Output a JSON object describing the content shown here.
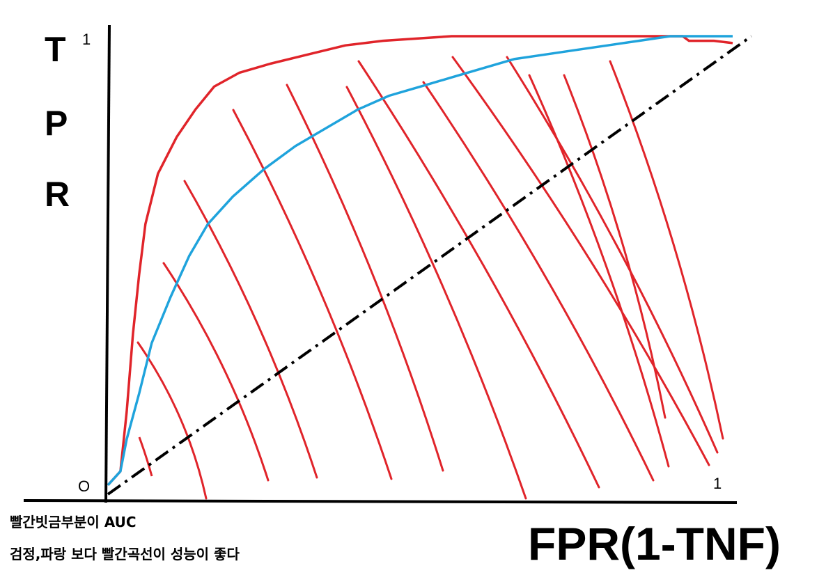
{
  "chart_data": {
    "type": "line",
    "ylabel_letters": [
      "T",
      "P",
      "R"
    ],
    "xlabel": "FPR(1-TNF)",
    "ytick_top": "1",
    "xtick_right": "1",
    "origin_label": "O",
    "xlim": [
      0,
      1
    ],
    "ylim": [
      0,
      1
    ],
    "notes": [
      "빨간빗금부분이 AUC",
      "검정,파랑 보다 빨간곡선이 성능이 좋다"
    ],
    "colors": {
      "red": "#e0242a",
      "blue": "#1fa3dc",
      "black": "#000000"
    },
    "series": [
      {
        "color": "red",
        "style": "solid",
        "x": [
          0.0,
          0.02,
          0.03,
          0.04,
          0.05,
          0.06,
          0.08,
          0.11,
          0.14,
          0.17,
          0.21,
          0.26,
          0.32,
          0.38,
          0.44,
          0.55,
          0.7,
          0.85,
          0.92,
          0.93,
          0.97,
          1.0
        ],
        "y": [
          0.02,
          0.05,
          0.18,
          0.35,
          0.48,
          0.59,
          0.7,
          0.78,
          0.84,
          0.89,
          0.92,
          0.94,
          0.96,
          0.98,
          0.99,
          1.0,
          1.0,
          1.0,
          1.0,
          0.99,
          0.99,
          0.985
        ]
      },
      {
        "color": "blue",
        "style": "solid",
        "x": [
          0.0,
          0.02,
          0.03,
          0.05,
          0.07,
          0.1,
          0.13,
          0.16,
          0.2,
          0.25,
          0.3,
          0.35,
          0.4,
          0.45,
          0.5,
          0.55,
          0.6,
          0.65,
          0.7,
          0.75,
          0.8,
          0.85,
          0.9,
          0.95,
          1.0
        ],
        "y": [
          0.02,
          0.05,
          0.12,
          0.22,
          0.33,
          0.43,
          0.52,
          0.59,
          0.65,
          0.71,
          0.76,
          0.8,
          0.84,
          0.87,
          0.89,
          0.91,
          0.93,
          0.95,
          0.96,
          0.97,
          0.98,
          0.99,
          1.0,
          1.0,
          1.0
        ]
      },
      {
        "color": "black",
        "style": "dashdot",
        "x": [
          0.0,
          1.03
        ],
        "y": [
          0.0,
          1.0
        ]
      }
    ]
  }
}
